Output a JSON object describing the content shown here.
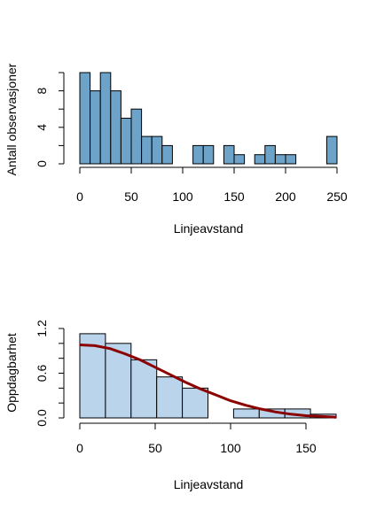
{
  "colors": {
    "hist1_fill": "#6ea3c9",
    "hist2_fill": "#bad4ec",
    "curve": "#8b0000",
    "axis": "#000000"
  },
  "chart_data": [
    {
      "type": "bar",
      "subtype": "histogram",
      "xlabel": "Linjeavstand",
      "ylabel": "Antall observasjoner",
      "bin_width": 10,
      "bin_starts": [
        0,
        10,
        20,
        30,
        40,
        50,
        60,
        70,
        80,
        90,
        100,
        110,
        120,
        130,
        140,
        150,
        160,
        170,
        180,
        190,
        200,
        210,
        220,
        230,
        240
      ],
      "values": [
        10,
        8,
        10,
        8,
        5,
        6,
        3,
        3,
        2,
        0,
        0,
        2,
        2,
        0,
        2,
        1,
        0,
        1,
        2,
        1,
        1,
        0,
        0,
        0,
        3
      ],
      "xlim": [
        0,
        250
      ],
      "ylim": [
        0,
        10
      ],
      "x_ticks": [
        0,
        50,
        100,
        150,
        200,
        250
      ],
      "x_tick_labels": [
        "0",
        "50",
        "100",
        "150",
        "200",
        "250"
      ],
      "y_ticks": [
        0,
        4,
        8
      ],
      "y_tick_labels": [
        "0",
        "4",
        "8"
      ],
      "y_minor_ticks": [
        2,
        6,
        10
      ],
      "grid": false
    },
    {
      "type": "bar",
      "subtype": "histogram_with_fitted_curve",
      "xlabel": "Linjeavstand",
      "ylabel": "Oppdagbarhet",
      "bin_width": 17,
      "bin_starts": [
        0,
        17,
        34,
        51,
        68,
        85,
        102,
        119,
        136,
        153
      ],
      "values": [
        1.13,
        1.0,
        0.78,
        0.55,
        0.4,
        0.0,
        0.12,
        0.12,
        0.12,
        0.05
      ],
      "curve": {
        "x": [
          0,
          10,
          20,
          30,
          40,
          50,
          60,
          70,
          80,
          90,
          100,
          110,
          120,
          130,
          140,
          150,
          160,
          170
        ],
        "y": [
          0.98,
          0.97,
          0.93,
          0.86,
          0.78,
          0.68,
          0.58,
          0.48,
          0.39,
          0.31,
          0.23,
          0.17,
          0.12,
          0.08,
          0.05,
          0.03,
          0.02,
          0.01
        ]
      },
      "xlim": [
        0,
        170
      ],
      "ylim": [
        0,
        1.2
      ],
      "x_ticks": [
        0,
        50,
        100,
        150
      ],
      "x_tick_labels": [
        "0",
        "50",
        "100",
        "150"
      ],
      "y_ticks": [
        0.0,
        0.6,
        1.2
      ],
      "y_tick_labels": [
        "0.0",
        "0.6",
        "1.2"
      ],
      "y_minor_ticks": [
        0.2,
        0.4,
        0.8,
        1.0
      ],
      "grid": false
    }
  ]
}
